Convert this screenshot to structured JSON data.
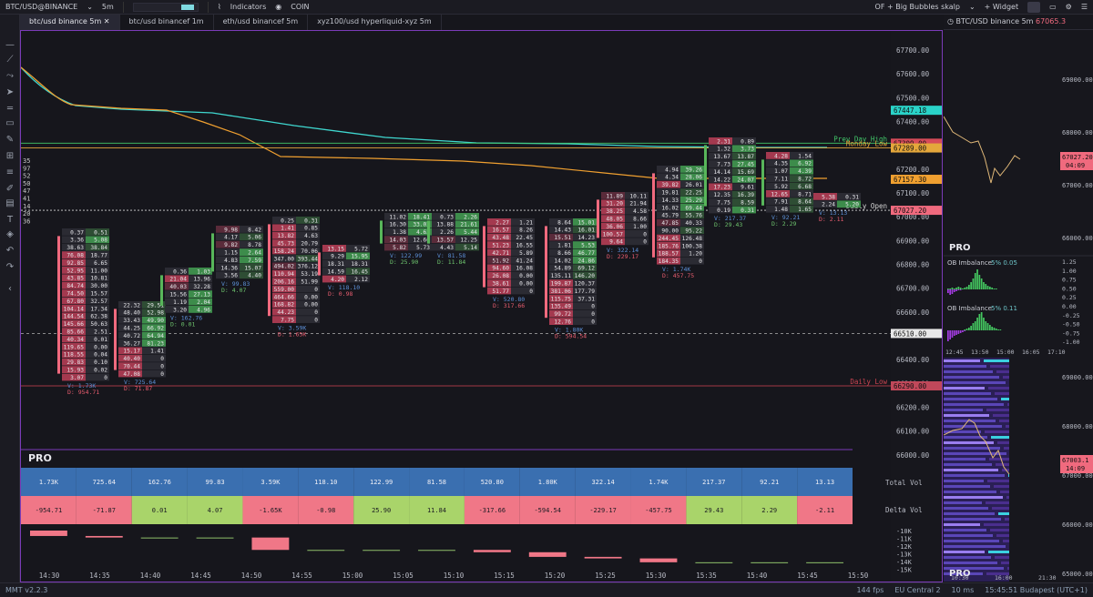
{
  "topbar": {
    "symbol": "BTC/USD@BINANCE",
    "interval": "5m",
    "indicators": "Indicators",
    "coin": "COIN",
    "layout": "OF + Big Bubbles skalp",
    "widget": "Widget"
  },
  "tabs": [
    "btc/usd binance 5m",
    "btc/usd binancef 1m",
    "eth/usd binancef 5m",
    "xyz100/usd hyperliquid-xyz 5m"
  ],
  "price_axis": {
    "labels": [
      "67700.00",
      "67600.00",
      "67500.00",
      "67400.00",
      "67300.00",
      "67200.00",
      "67100.00",
      "67000.00",
      "66900.00",
      "66800.00",
      "66700.00",
      "66600.00",
      "66510.00",
      "66400.00",
      "66300.00",
      "66200.00",
      "66100.00",
      "66000.00"
    ],
    "tags": [
      {
        "text": "67447.18",
        "bg": "#2ad3c8"
      },
      {
        "text": "67309.00",
        "bg": "#d64b59"
      },
      {
        "text": "67289.00",
        "bg": "#e4a73b"
      },
      {
        "text": "67157.30",
        "bg": "#f0a030"
      },
      {
        "text": "67027.20",
        "bg": "#f06a7e"
      },
      {
        "text": "66510.00",
        "bg": "#e8e8e8"
      },
      {
        "text": "66290.00",
        "bg": "#c0485a"
      }
    ]
  },
  "levels": [
    {
      "name": "Prev Day High",
      "color": "#42c86a"
    },
    {
      "name": "Monday Low",
      "color": "#e4a73b"
    },
    {
      "name": "Daily Open",
      "color": "#d8d8d8"
    },
    {
      "name": "Daily Low",
      "color": "#d04552"
    }
  ],
  "time_labels": [
    "14:30",
    "14:35",
    "14:40",
    "14:45",
    "14:50",
    "14:55",
    "15:00",
    "15:05",
    "15:10",
    "15:15",
    "15:20",
    "15:25",
    "15:30",
    "15:35",
    "15:40",
    "15:45",
    "15:50"
  ],
  "edge_numbers": [
    "35",
    "97",
    "52",
    "50",
    "47",
    "41",
    "14",
    "20",
    "36"
  ],
  "candles": [
    {
      "v": "1.73K",
      "d": "954.71",
      "dneg": true,
      "rows": [
        [
          "0.37",
          "0.51"
        ],
        [
          "3.36",
          "5.08"
        ],
        [
          "38.63",
          "38.84"
        ],
        [
          "76.08",
          "18.77"
        ],
        [
          "92.85",
          "6.65"
        ],
        [
          "52.95",
          "11.00"
        ],
        [
          "43.85",
          "10.81"
        ],
        [
          "84.74",
          "30.00"
        ],
        [
          "74.50",
          "15.57"
        ],
        [
          "67.80",
          "32.57"
        ],
        [
          "104.14",
          "17.34"
        ],
        [
          "144.54",
          "62.38"
        ],
        [
          "145.66",
          "50.63"
        ],
        [
          "85.66",
          "2.51"
        ],
        [
          "40.34",
          "0.01"
        ],
        [
          "119.65",
          "0.00"
        ],
        [
          "118.55",
          "0.04"
        ],
        [
          "29.83",
          "0.10"
        ],
        [
          "15.93",
          "0.02"
        ],
        [
          "3.07",
          "0"
        ]
      ]
    },
    {
      "v": "725.64",
      "d": "71.87",
      "dneg": true,
      "rows": [
        [
          "22.32",
          "29.51"
        ],
        [
          "48.40",
          "52.98"
        ],
        [
          "33.43",
          "49.90"
        ],
        [
          "44.25",
          "66.92"
        ],
        [
          "40.72",
          "64.94"
        ],
        [
          "36.27",
          "81.23"
        ],
        [
          "15.17",
          "1.41"
        ],
        [
          "40.40",
          "0"
        ],
        [
          "70.44",
          "0"
        ],
        [
          "47.08",
          "0"
        ]
      ]
    },
    {
      "v": "162.76",
      "d": "0.01",
      "dneg": false,
      "rows": [
        [
          "0.36",
          "1.03"
        ],
        [
          "21.04",
          "13.96"
        ],
        [
          "40.03",
          "32.28"
        ],
        [
          "15.56",
          "27.13"
        ],
        [
          "1.19",
          "2.04"
        ],
        [
          "3.20",
          "4.96"
        ]
      ]
    },
    {
      "v": "99.83",
      "d": "4.07",
      "dneg": false,
      "rows": [
        [
          "9.98",
          "8.42"
        ],
        [
          "4.17",
          "5.06"
        ],
        [
          "9.82",
          "8.78"
        ],
        [
          "1.15",
          "2.64"
        ],
        [
          "4.83",
          "7.59"
        ],
        [
          "14.36",
          "15.07"
        ],
        [
          "3.56",
          "4.40"
        ]
      ]
    },
    {
      "v": "3.59K",
      "d": "1.65K",
      "dneg": true,
      "rows": [
        [
          "0.25",
          "0.31"
        ],
        [
          "1.41",
          "0.85"
        ],
        [
          "13.82",
          "4.63"
        ],
        [
          "45.73",
          "20.79"
        ],
        [
          "158.24",
          "70.06"
        ],
        [
          "347.00",
          "393.44"
        ],
        [
          "494.02",
          "376.12"
        ],
        [
          "110.94",
          "53.19"
        ],
        [
          "206.16",
          "51.99"
        ],
        [
          "559.00",
          "0"
        ],
        [
          "464.66",
          "0.00"
        ],
        [
          "168.82",
          "0.00"
        ],
        [
          "44.23",
          "0"
        ],
        [
          "7.75",
          "0"
        ]
      ]
    },
    {
      "v": "118.10",
      "d": "0.98",
      "dneg": true,
      "rows": [
        [
          "13.15",
          "5.72"
        ],
        [
          "9.29",
          "15.95"
        ],
        [
          "18.31",
          "18.31"
        ],
        [
          "14.59",
          "16.45"
        ],
        [
          "4.20",
          "2.12"
        ]
      ]
    },
    {
      "v": "122.99",
      "d": "25.90",
      "dneg": false,
      "rows": [
        [
          "11.02",
          "18.41"
        ],
        [
          "16.30",
          "33.02"
        ],
        [
          "1.38",
          "4.63"
        ],
        [
          "14.03",
          "12.66"
        ],
        [
          "5.82",
          "5.73"
        ]
      ]
    },
    {
      "v": "81.58",
      "d": "11.84",
      "dneg": false,
      "rows": [
        [
          "0.73",
          "2.26"
        ],
        [
          "13.88",
          "21.61"
        ],
        [
          "2.26",
          "5.44"
        ],
        [
          "13.57",
          "12.25"
        ],
        [
          "4.43",
          "5.14"
        ]
      ]
    },
    {
      "v": "520.80",
      "d": "317.66",
      "dneg": true,
      "rows": [
        [
          "2.27",
          "1.21"
        ],
        [
          "16.57",
          "8.26"
        ],
        [
          "43.48",
          "22.45"
        ],
        [
          "51.23",
          "16.55"
        ],
        [
          "42.71",
          "5.89"
        ],
        [
          "51.92",
          "41.24"
        ],
        [
          "94.60",
          "16.08"
        ],
        [
          "26.08",
          "0.00"
        ],
        [
          "38.61",
          "0.00"
        ],
        [
          "51.77",
          "0"
        ]
      ]
    },
    {
      "v": "1.80K",
      "d": "594.54",
      "dneg": true,
      "rows": [
        [
          "8.64",
          "15.01"
        ],
        [
          "14.43",
          "16.01"
        ],
        [
          "15.51",
          "14.23"
        ],
        [
          "1.81",
          "5.53"
        ],
        [
          "8.66",
          "46.77"
        ],
        [
          "14.02",
          "24.86"
        ],
        [
          "54.89",
          "69.12"
        ],
        [
          "135.11",
          "146.20"
        ],
        [
          "199.87",
          "120.37"
        ],
        [
          "381.06",
          "177.79"
        ],
        [
          "115.75",
          "37.31"
        ],
        [
          "135.49",
          "0"
        ],
        [
          "99.72",
          "0"
        ],
        [
          "12.76",
          "0"
        ]
      ]
    },
    {
      "v": "322.14",
      "d": "229.17",
      "dneg": true,
      "rows": [
        [
          "11.89",
          "10.11"
        ],
        [
          "31.20",
          "21.94"
        ],
        [
          "38.25",
          "4.58"
        ],
        [
          "48.05",
          "8.66"
        ],
        [
          "36.06",
          "1.00"
        ],
        [
          "100.57",
          "0"
        ],
        [
          "9.64",
          "0"
        ]
      ]
    },
    {
      "v": "1.74K",
      "d": "457.75",
      "dneg": true,
      "rows": [
        [
          "4.94",
          "39.26"
        ],
        [
          "4.34",
          "28.06"
        ],
        [
          "39.82",
          "26.01"
        ],
        [
          "19.81",
          "22.25"
        ],
        [
          "14.33",
          "25.29"
        ],
        [
          "16.02",
          "69.44"
        ],
        [
          "45.79",
          "55.76"
        ],
        [
          "47.85",
          "40.33"
        ],
        [
          "90.00",
          "95.22"
        ],
        [
          "244.45",
          "126.48"
        ],
        [
          "185.76",
          "100.38"
        ],
        [
          "188.57",
          "1.20"
        ],
        [
          "184.35",
          "0"
        ]
      ]
    },
    {
      "v": "217.37",
      "d": "29.43",
      "dneg": false,
      "rows": [
        [
          "2.31",
          "0.89"
        ],
        [
          "1.32",
          "3.73"
        ],
        [
          "13.67",
          "13.87"
        ],
        [
          "7.73",
          "27.45"
        ],
        [
          "14.14",
          "15.69"
        ],
        [
          "14.22",
          "24.07"
        ],
        [
          "17.23",
          "9.61"
        ],
        [
          "12.35",
          "16.39"
        ],
        [
          "7.75",
          "8.59"
        ],
        [
          "0.19",
          "0.31"
        ]
      ]
    },
    {
      "v": "92.21",
      "d": "2.29",
      "dneg": false,
      "rows": [
        [
          "4.28",
          "1.54"
        ],
        [
          "4.35",
          "6.92"
        ],
        [
          "1.07",
          "4.39"
        ],
        [
          "7.11",
          "8.72"
        ],
        [
          "5.92",
          "6.68"
        ],
        [
          "12.65",
          "8.71"
        ],
        [
          "7.91",
          "8.64"
        ],
        [
          "1.48",
          "1.65"
        ]
      ]
    },
    {
      "v": "13.13",
      "d": "2.11",
      "dneg": true,
      "rows": [
        [
          "5.38",
          "0.31"
        ],
        [
          "2.24",
          "5.20"
        ]
      ]
    }
  ],
  "bottom_panel": {
    "logo": "PRO",
    "total_vol_label": "Total Vol",
    "delta_vol_label": "Delta Vol",
    "total_vol": [
      "1.73K",
      "725.64",
      "162.76",
      "99.83",
      "3.59K",
      "118.10",
      "122.99",
      "81.58",
      "520.80",
      "1.80K",
      "322.14",
      "1.74K",
      "217.37",
      "92.21",
      "13.13"
    ],
    "delta_vol": [
      "-954.71",
      "-71.87",
      "0.01",
      "4.07",
      "-1.65K",
      "-0.98",
      "25.90",
      "11.84",
      "-317.66",
      "-594.54",
      "-229.17",
      "-457.75",
      "29.43",
      "2.29",
      "-2.11"
    ],
    "cvd_axis": [
      "-10K",
      "-11K",
      "-12K",
      "-13K",
      "-14K",
      "-15K"
    ],
    "cvd": [
      -10.7,
      -10.9,
      -10.9,
      -10.9,
      -12.5,
      -12.5,
      -12.5,
      -12.5,
      -12.8,
      -13.4,
      -13.6,
      -14.1,
      -14.1,
      -14.1,
      -14.1
    ]
  },
  "right_panel": {
    "title": "BTC/USD binance 5m",
    "price": "67065.3",
    "pro": "PRO",
    "top_axis": [
      "69000.00",
      "68000.00",
      "67000.00",
      "66000.00"
    ],
    "top_tags": [
      "67027.20",
      "04:09"
    ],
    "ob1": "OB Imbalance",
    "ob1_vals": "5% 0.05",
    "ob2": "OB Imbalance",
    "ob2_vals": "5% 0.11",
    "ob_axis": [
      "1.25",
      "1.00",
      "0.75",
      "0.50",
      "0.25",
      "0.00",
      "-0.25",
      "-0.50",
      "-0.75",
      "-1.00"
    ],
    "mid_times": [
      "12:45",
      "13:50",
      "15:00",
      "16:05",
      "17:10"
    ],
    "bot_axis": [
      "69000.00",
      "68000.00",
      "67000.00",
      "66000.00",
      "65000.00",
      "64000.00"
    ],
    "bot_tags": [
      "67003.1",
      "14:09"
    ],
    "bot_times": [
      "10:30",
      "16:00",
      "21:30"
    ]
  },
  "status": {
    "version": "MMT v2.2.3",
    "fps": "144 fps",
    "region": "EU Central 2",
    "ping": "10 ms",
    "clock": "15:45:51 Budapest (UTC+1)"
  }
}
